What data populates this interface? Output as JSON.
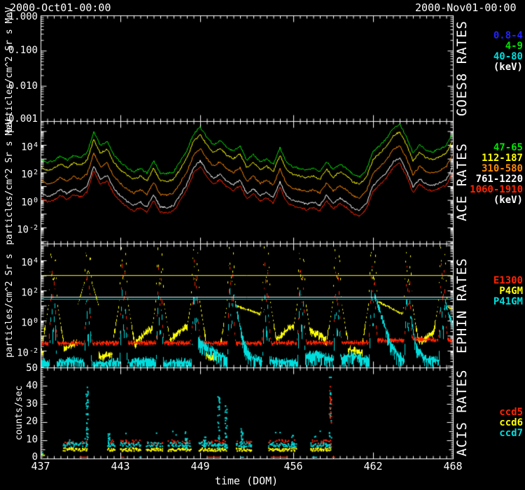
{
  "header": {
    "title_left": "2000-Oct01-00:00",
    "title_right": "2000-Nov01-00:00"
  },
  "xaxis": {
    "title": "time (DOM)",
    "range": [
      437,
      468
    ],
    "minor_step": 0.5,
    "ticks": [
      {
        "day": 437,
        "label": "437"
      },
      {
        "day": 443,
        "label": "443"
      },
      {
        "day": 449,
        "label": "449"
      },
      {
        "day": 456,
        "label": "456"
      },
      {
        "day": 462,
        "label": "462"
      },
      {
        "day": 468,
        "label": "468"
      }
    ]
  },
  "panels": [
    {
      "name": "GOES8 RATES",
      "ylabel": "particles/cm^2 Sr s MeV",
      "yticks": [
        {
          "label": "1.000"
        },
        {
          "label": "0.100"
        },
        {
          "label": "0.010"
        },
        {
          "label": "0.001"
        }
      ],
      "legend": {
        "items": [
          {
            "label": "0.8-4",
            "color": "#2222ff"
          },
          {
            "label": "4-9",
            "color": "#00e300"
          },
          {
            "label": "40-80",
            "color": "#00dddd"
          },
          {
            "label": "(keV)",
            "color": "#ffffff"
          }
        ]
      }
    },
    {
      "name": "ACE RATES",
      "ylabel": "particles/cm^2 Sr s MeV",
      "yticks": [
        {
          "base": "10",
          "exp": "4"
        },
        {
          "base": "10",
          "exp": "2"
        },
        {
          "base": "10",
          "exp": "0"
        },
        {
          "base": "10",
          "exp": "-2"
        }
      ],
      "legend": {
        "items": [
          {
            "label": "47-65",
            "color": "#00e300"
          },
          {
            "label": "112-187",
            "color": "#ffff00"
          },
          {
            "label": "310-580",
            "color": "#ff8800"
          },
          {
            "label": "761-1220",
            "color": "#ffffff"
          },
          {
            "label": "1060-1910",
            "color": "#ff2400"
          },
          {
            "label": "(keV)",
            "color": "#ffffff"
          }
        ]
      }
    },
    {
      "name": "EPHIN RATES",
      "ylabel": "particles/cm^2 Sr s",
      "yticks": [
        {
          "base": "10",
          "exp": "4"
        },
        {
          "base": "10",
          "exp": "2"
        },
        {
          "base": "10",
          "exp": "0"
        },
        {
          "base": "10",
          "exp": "-2"
        }
      ],
      "legend": {
        "items": [
          {
            "label": "E1300",
            "color": "#ff2400"
          },
          {
            "label": "P4GM",
            "color": "#ffff00"
          },
          {
            "label": "P41GM",
            "color": "#00dddd"
          }
        ]
      }
    },
    {
      "name": "ACIS RATES",
      "ylabel": "counts/sec",
      "yticks": [
        {
          "label": "50"
        },
        {
          "label": "40"
        },
        {
          "label": "30"
        },
        {
          "label": "20"
        },
        {
          "label": "10"
        },
        {
          "label": "0"
        }
      ],
      "legend": {
        "items": [
          {
            "label": "ccd5",
            "color": "#ff2400"
          },
          {
            "label": "ccd6",
            "color": "#ffff00"
          },
          {
            "label": "ccd7",
            "color": "#00dddd"
          }
        ]
      }
    }
  ],
  "chart_data": [
    {
      "panel": "GOES8 RATES",
      "type": "line",
      "yscale": "log",
      "ytick_labels": [
        "1.000",
        "0.100",
        "0.010",
        "0.001"
      ],
      "xrange": [
        437,
        468
      ],
      "series": []
    },
    {
      "panel": "ACE RATES",
      "type": "line",
      "yscale": "log",
      "yrange_log": [
        -3.17,
        5.73
      ],
      "x_start": 437,
      "x_step": 0.5,
      "base_log_values": [
        3.0,
        2.7,
        2.85,
        3.2,
        2.9,
        3.25,
        3.05,
        3.45,
        4.95,
        3.95,
        4.25,
        3.3,
        2.75,
        2.35,
        2.05,
        2.3,
        1.95,
        2.85,
        1.95,
        1.9,
        2.05,
        2.8,
        3.6,
        4.8,
        5.3,
        4.55,
        4.0,
        4.35,
        3.8,
        3.55,
        3.9,
        2.9,
        3.3,
        2.75,
        3.0,
        2.6,
        3.8,
        2.7,
        2.4,
        2.3,
        2.15,
        2.3,
        2.05,
        2.8,
        2.2,
        2.6,
        2.3,
        1.85,
        1.7,
        2.2,
        3.5,
        3.95,
        4.45,
        5.2,
        5.5,
        4.6,
        3.4,
        4.0,
        3.6,
        3.5,
        3.7,
        3.95,
        4.9
      ],
      "series": [
        {
          "name": "47-65",
          "color": "#00e300",
          "offset_decades": 0
        },
        {
          "name": "112-187",
          "color": "#ffff00",
          "offset_decades": 0.55
        },
        {
          "name": "310-580",
          "color": "#ff8800",
          "offset_decades": 1.55
        },
        {
          "name": "761-1220",
          "color": "#ffffff",
          "offset_decades": 2.45
        },
        {
          "name": "1060-1910",
          "color": "#ff2400",
          "offset_decades": 2.85
        }
      ]
    },
    {
      "panel": "EPHIN RATES",
      "type": "line",
      "yscale": "log",
      "yrange_log": [
        -3.12,
        5.12
      ],
      "threshold_lines": [
        {
          "color": "#ffff00",
          "log_value": 3.02
        },
        {
          "color": "#ffffff",
          "log_value": 1.58
        },
        {
          "color": "#00cccc",
          "log_value": 1.44
        }
      ],
      "spikes": {
        "days": [
          437.92,
          440.55,
          443.22,
          445.95,
          448.62,
          451.32,
          453.95,
          456.6,
          459.28,
          461.98,
          464.62,
          467.22
        ],
        "wide_pedestal_day": 440.55,
        "peaks": {
          "P4GM": [
            4.9,
            5.0,
            5.0,
            4.8,
            5.05,
            4.9,
            4.9,
            4.9,
            5.0,
            5.0,
            4.8,
            5.0
          ],
          "E1300": [
            3.9,
            3.6,
            4.1,
            3.7,
            4.2,
            3.8,
            4.0,
            4.1,
            3.9,
            4.0,
            3.8,
            4.2
          ],
          "P41GM": [
            1.9,
            1.6,
            2.0,
            1.8,
            2.1,
            2.2,
            1.9,
            2.1,
            1.8,
            2.3,
            2.0,
            2.1
          ]
        }
      },
      "series": [
        {
          "name": "E1300",
          "color": "#ff2400",
          "baseline": [
            [
              437,
              -1.5
            ],
            [
              445,
              -1.45
            ],
            [
              452,
              -1.5
            ],
            [
              456,
              -1.45
            ],
            [
              461.9,
              -1.45
            ],
            [
              462.2,
              -1.3
            ],
            [
              464.4,
              -1.3
            ],
            [
              464.9,
              -1.2
            ],
            [
              468,
              -1.3
            ]
          ]
        },
        {
          "name": "P4GM",
          "color": "#ffff00",
          "baseline": [
            [
              437.0,
              -2.0
            ],
            [
              437.6,
              -2.2
            ],
            [
              438.3,
              -2.1
            ],
            [
              439.3,
              -1.6
            ],
            [
              439.9,
              -1.4
            ],
            [
              440.2,
              -1.7
            ],
            [
              440.9,
              -2.1
            ],
            [
              441.6,
              -2.4
            ],
            [
              442.4,
              -2.2
            ],
            [
              443.05,
              -2.4
            ],
            [
              443.5,
              -2.3
            ],
            [
              444.3,
              -1.3
            ],
            [
              445.2,
              -0.55
            ],
            [
              445.75,
              -0.8
            ],
            [
              446.25,
              -1.9
            ],
            [
              447.0,
              -1.0
            ],
            [
              447.9,
              -0.35
            ],
            [
              448.4,
              -0.55
            ],
            [
              448.85,
              -2.2
            ],
            [
              449.8,
              -2.4
            ],
            [
              450.8,
              -2.3
            ],
            [
              451.15,
              -2.5
            ],
            [
              451.5,
              1.05
            ],
            [
              452.5,
              0.75
            ],
            [
              453.8,
              0.35
            ],
            [
              454.15,
              -1.9
            ],
            [
              454.9,
              -1.1
            ],
            [
              455.6,
              -0.5
            ],
            [
              456.3,
              -0.28
            ],
            [
              456.45,
              -0.4
            ],
            [
              456.8,
              -0.5
            ],
            [
              457.6,
              -0.85
            ],
            [
              458.3,
              -1.15
            ],
            [
              458.9,
              -1.9
            ],
            [
              459.15,
              -2.0
            ],
            [
              459.5,
              -2.1
            ],
            [
              460.3,
              -1.9
            ],
            [
              461.3,
              -2.2
            ],
            [
              461.8,
              -2.3
            ],
            [
              462.15,
              1.35
            ],
            [
              463.0,
              1.0
            ],
            [
              464.4,
              0.35
            ],
            [
              464.85,
              -0.9
            ],
            [
              465.3,
              -1.4
            ],
            [
              465.9,
              -1.2
            ],
            [
              466.6,
              -0.7
            ],
            [
              467.05,
              -0.35
            ],
            [
              467.4,
              0.95
            ],
            [
              468.0,
              0.8
            ]
          ]
        },
        {
          "name": "P41GM",
          "color": "#00dddd",
          "baseline": [
            [
              437.0,
              -2.7
            ],
            [
              438.2,
              -2.8
            ],
            [
              439.5,
              -2.6
            ],
            [
              440.3,
              -2.8
            ],
            [
              441.0,
              -2.9
            ],
            [
              442.5,
              -2.7
            ],
            [
              443.5,
              -2.8
            ],
            [
              445.0,
              -2.6
            ],
            [
              446.2,
              -2.9
            ],
            [
              447.5,
              -2.7
            ],
            [
              448.45,
              -2.8
            ],
            [
              448.8,
              -1.3
            ],
            [
              449.8,
              -1.9
            ],
            [
              450.9,
              -2.5
            ],
            [
              451.2,
              -2.6
            ],
            [
              451.5,
              1.9
            ],
            [
              451.75,
              0.5
            ],
            [
              452.3,
              -1.6
            ],
            [
              452.8,
              -2.4
            ],
            [
              453.8,
              -2.7
            ],
            [
              454.2,
              -2.6
            ],
            [
              455.5,
              -2.7
            ],
            [
              456.4,
              -2.8
            ],
            [
              456.8,
              -2.4
            ],
            [
              457.5,
              -2.2
            ],
            [
              458.5,
              -2.4
            ],
            [
              459.2,
              -2.6
            ],
            [
              459.5,
              -2.5
            ],
            [
              460.5,
              -2.3
            ],
            [
              461.8,
              -2.6
            ],
            [
              462.15,
              1.6
            ],
            [
              462.6,
              0.3
            ],
            [
              463.3,
              -1.5
            ],
            [
              463.9,
              -2.3
            ],
            [
              464.45,
              -2.6
            ],
            [
              464.8,
              0.4
            ],
            [
              465.15,
              -1.5
            ],
            [
              465.8,
              -2.5
            ],
            [
              466.8,
              -2.6
            ],
            [
              467.1,
              -2.7
            ],
            [
              467.4,
              1.25
            ],
            [
              468.0,
              -0.5
            ]
          ]
        }
      ]
    },
    {
      "panel": "ACIS RATES",
      "type": "scatter",
      "yscale": "linear",
      "yrange": [
        0,
        50
      ],
      "series": [
        {
          "name": "ccd5",
          "color": "#ff2400",
          "level": 9.2,
          "spread": 1.1
        },
        {
          "name": "ccd6",
          "color": "#ffff00",
          "level": 4.9,
          "spread": 0.9
        },
        {
          "name": "ccd7",
          "color": "#00dddd",
          "level": 7.6,
          "spread": 1.2
        }
      ],
      "observation_bands": [
        [
          437.0,
          437.25,
          "low"
        ],
        [
          438.75,
          440.55
        ],
        [
          442.05,
          442.6
        ],
        [
          443.0,
          444.5
        ],
        [
          445.0,
          446.2
        ],
        [
          446.6,
          448.35
        ],
        [
          448.9,
          451.0
        ],
        [
          451.75,
          452.9
        ],
        [
          454.15,
          456.25
        ],
        [
          457.3,
          458.85
        ]
      ],
      "streak_events": [
        {
          "day": 440.5,
          "max": 41
        },
        {
          "day": 442.15,
          "max": 15
        },
        {
          "day": 447.95,
          "max": 15
        },
        {
          "day": 449.35,
          "max": 12
        },
        {
          "day": 450.4,
          "max": 34
        },
        {
          "day": 450.95,
          "max": 30
        },
        {
          "day": 452.15,
          "max": 20
        },
        {
          "day": 455.95,
          "max": 13
        },
        {
          "day": 458.8,
          "max": 47,
          "with_red": true
        }
      ],
      "zero_dashes": [
        [
          439.9,
          440.5,
          "#ff2400"
        ],
        [
          443.05,
          443.3,
          "#ff2400"
        ],
        [
          444.4,
          444.6,
          "#00dddd"
        ],
        [
          449.55,
          450.5,
          "#ff2400"
        ],
        [
          452.0,
          452.3,
          "#00dddd"
        ],
        [
          454.3,
          455.6,
          "#ff2400"
        ],
        [
          457.4,
          457.8,
          "#00dddd"
        ],
        [
          458.9,
          459.15,
          "#ff2400"
        ]
      ]
    }
  ]
}
